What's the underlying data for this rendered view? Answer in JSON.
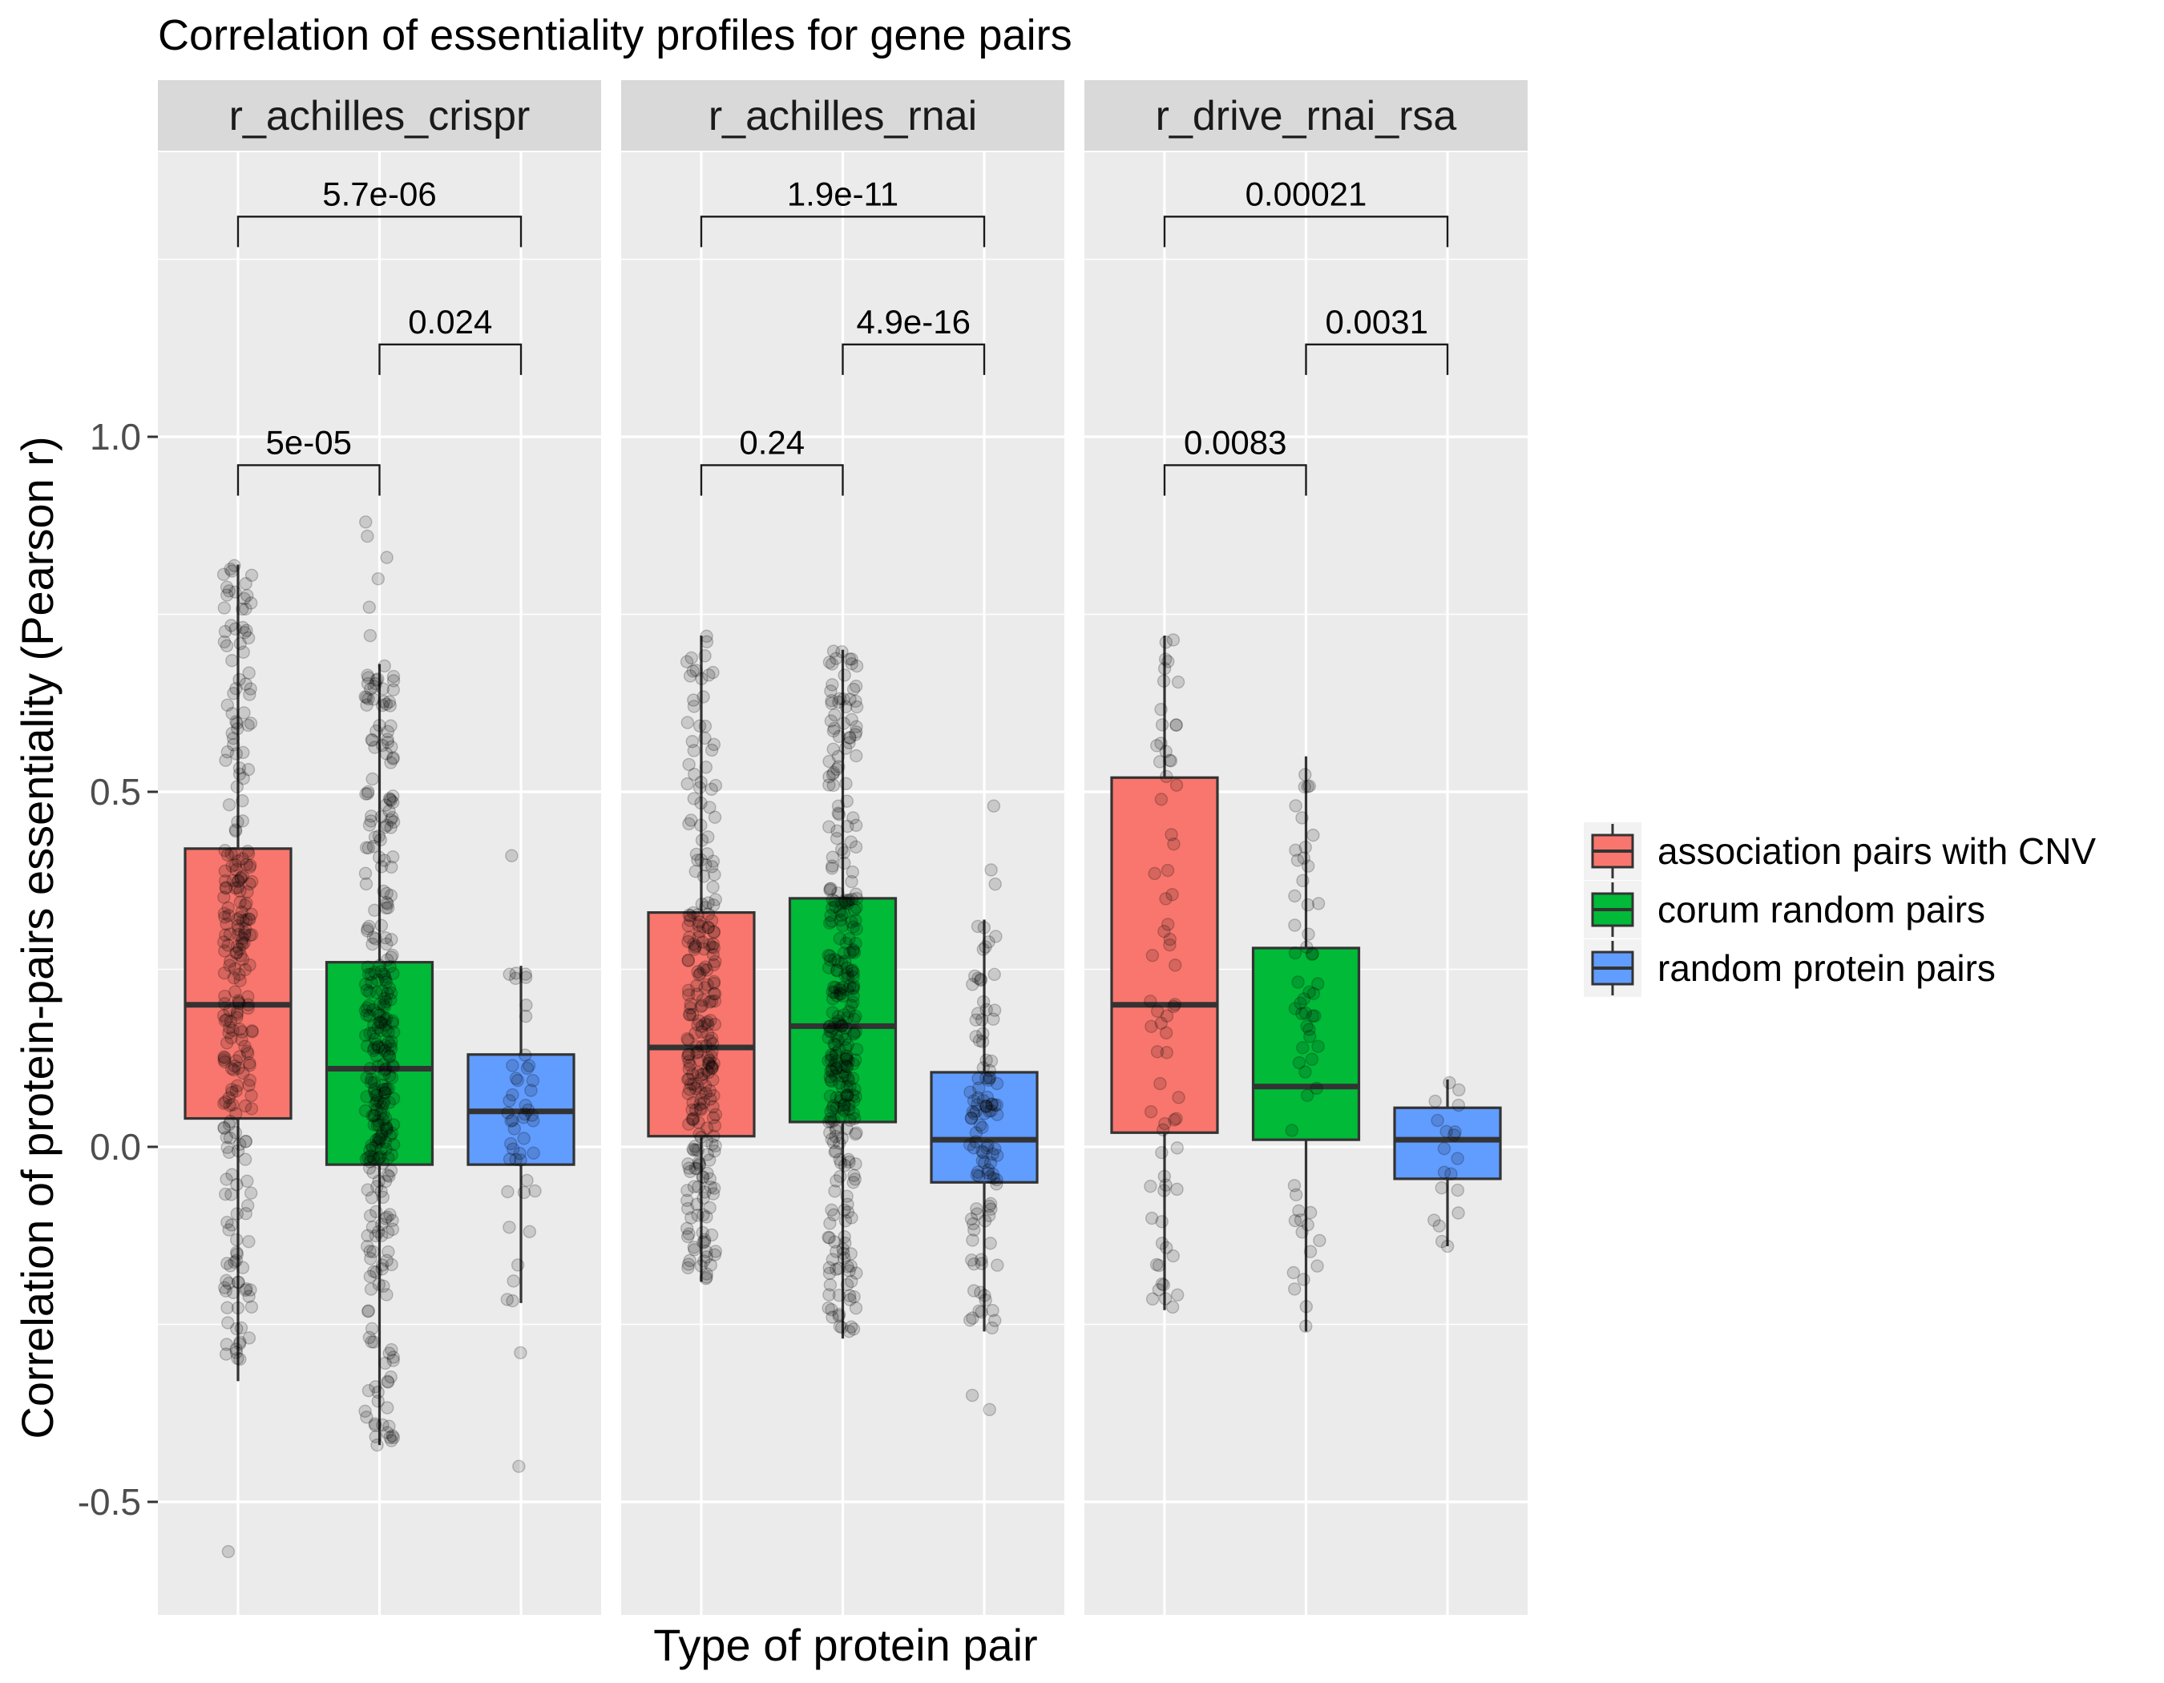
{
  "chart_data": {
    "type": "boxplot",
    "title": "Correlation of essentiality profiles for gene pairs",
    "xlabel": "Type of protein pair",
    "ylabel": "Correlation of protein-pairs essentiality (Pearson r)",
    "ylim": [
      -0.66,
      1.5
    ],
    "yticks": [
      -0.5,
      0.0,
      0.5,
      1.0
    ],
    "ytick_labels": [
      "-0.5",
      "0.0",
      "0.5",
      "1.0"
    ],
    "grid": true,
    "legend_position": "right",
    "categories": [
      "association pairs with CNV",
      "corum random pairs",
      "random protein pairs"
    ],
    "colors": {
      "association pairs with CNV": "#F8766D",
      "corum random pairs": "#00BA38",
      "random protein pairs": "#619CFF",
      "panel_bg": "#EBEBEB",
      "strip_bg": "#D9D9D9",
      "grid": "#FFFFFF"
    },
    "legend": [
      {
        "label": "association pairs with CNV",
        "color": "#F8766D"
      },
      {
        "label": "corum random pairs",
        "color": "#00BA38"
      },
      {
        "label": "random protein pairs",
        "color": "#619CFF"
      }
    ],
    "panels": [
      {
        "name": "r_achilles_crispr",
        "boxes": [
          {
            "category": "association pairs with CNV",
            "q1": 0.04,
            "median": 0.2,
            "q3": 0.42,
            "whisker_low": -0.33,
            "whisker_high": 0.82,
            "n": 260,
            "outliers": [
              -0.57
            ]
          },
          {
            "category": "corum random pairs",
            "q1": -0.025,
            "median": 0.11,
            "q3": 0.26,
            "whisker_low": -0.42,
            "whisker_high": 0.68,
            "n": 320,
            "outliers": [
              0.72,
              0.76,
              0.8,
              0.83,
              0.86,
              0.88,
              -0.42
            ]
          },
          {
            "category": "random protein pairs",
            "q1": -0.025,
            "median": 0.05,
            "q3": 0.13,
            "whisker_low": -0.22,
            "whisker_high": 0.255,
            "n": 45,
            "outliers": [
              0.41,
              -0.29,
              -0.45
            ]
          }
        ],
        "comparisons": [
          {
            "label": "5e-05",
            "from": 0,
            "to": 1,
            "level": 0.96
          },
          {
            "label": "0.024",
            "from": 1,
            "to": 2,
            "level": 1.13
          },
          {
            "label": "5.7e-06",
            "from": 0,
            "to": 2,
            "level": 1.31
          }
        ]
      },
      {
        "name": "r_achilles_rnai",
        "boxes": [
          {
            "category": "association pairs with CNV",
            "q1": 0.015,
            "median": 0.14,
            "q3": 0.33,
            "whisker_low": -0.19,
            "whisker_high": 0.72,
            "n": 260,
            "outliers": []
          },
          {
            "category": "corum random pairs",
            "q1": 0.035,
            "median": 0.17,
            "q3": 0.35,
            "whisker_low": -0.27,
            "whisker_high": 0.7,
            "n": 320,
            "outliers": []
          },
          {
            "category": "random protein pairs",
            "q1": -0.05,
            "median": 0.01,
            "q3": 0.105,
            "whisker_low": -0.26,
            "whisker_high": 0.32,
            "n": 110,
            "outliers": [
              0.37,
              0.39,
              0.48,
              -0.35,
              -0.37
            ]
          }
        ],
        "comparisons": [
          {
            "label": "0.24",
            "from": 0,
            "to": 1,
            "level": 0.96
          },
          {
            "label": "4.9e-16",
            "from": 1,
            "to": 2,
            "level": 1.13
          },
          {
            "label": "1.9e-11",
            "from": 0,
            "to": 2,
            "level": 1.31
          }
        ]
      },
      {
        "name": "r_drive_rnai_rsa",
        "boxes": [
          {
            "category": "association pairs with CNV",
            "q1": 0.02,
            "median": 0.2,
            "q3": 0.52,
            "whisker_low": -0.23,
            "whisker_high": 0.72,
            "n": 70,
            "outliers": []
          },
          {
            "category": "corum random pairs",
            "q1": 0.01,
            "median": 0.085,
            "q3": 0.28,
            "whisker_low": -0.26,
            "whisker_high": 0.55,
            "n": 60,
            "outliers": []
          },
          {
            "category": "random protein pairs",
            "q1": -0.045,
            "median": 0.01,
            "q3": 0.055,
            "whisker_low": -0.14,
            "whisker_high": 0.095,
            "n": 18,
            "outliers": [
              -0.14
            ]
          }
        ],
        "comparisons": [
          {
            "label": "0.0083",
            "from": 0,
            "to": 1,
            "level": 0.96
          },
          {
            "label": "0.0031",
            "from": 1,
            "to": 2,
            "level": 1.13
          },
          {
            "label": "0.00021",
            "from": 0,
            "to": 2,
            "level": 1.31
          }
        ]
      }
    ]
  }
}
